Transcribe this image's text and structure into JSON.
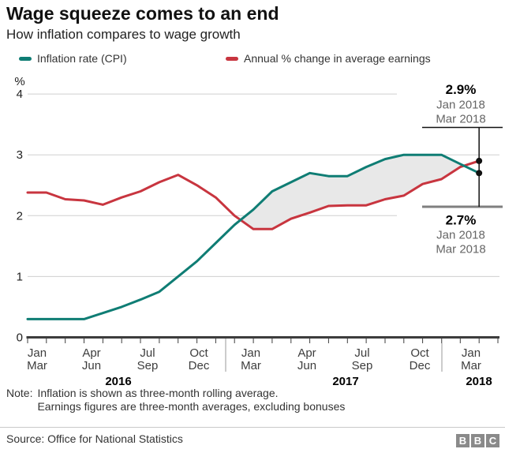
{
  "header": {
    "title": "Wage squeeze comes to an end",
    "subtitle": "How inflation compares to wage growth"
  },
  "legend": {
    "items": [
      {
        "label": "Inflation rate (CPI)",
        "color": "#0f7d74"
      },
      {
        "label": "Annual % change in average earnings",
        "color": "#c8353f"
      }
    ]
  },
  "chart_data": {
    "type": "line",
    "title": "Wage squeeze comes to an end",
    "subtitle": "How inflation compares to wage growth",
    "unit": "%",
    "ylim": [
      0,
      4
    ],
    "yticks": [
      4,
      3,
      2,
      1,
      0
    ],
    "grid": "horizontal",
    "legend_position": "top",
    "band_fill": "#e8e8e8",
    "x_periods": [
      "Jan-Mar 2016",
      "Feb-Apr 2016",
      "Mar-May 2016",
      "Apr-Jun 2016",
      "May-Jul 2016",
      "Jun-Aug 2016",
      "Jul-Sep 2016",
      "Aug-Oct 2016",
      "Sep-Nov 2016",
      "Oct-Dec 2016",
      "Nov 2016-Jan 2017",
      "Dec 2016-Feb 2017",
      "Jan-Mar 2017",
      "Feb-Apr 2017",
      "Mar-May 2017",
      "Apr-Jun 2017",
      "May-Jul 2017",
      "Jun-Aug 2017",
      "Jul-Sep 2017",
      "Aug-Oct 2017",
      "Sep-Nov 2017",
      "Oct-Dec 2017",
      "Nov 2017-Jan 2018",
      "Dec 2017-Feb 2018",
      "Jan-Mar 2018"
    ],
    "series": [
      {
        "name": "Inflation rate (CPI)",
        "color": "#0f7d74",
        "values": [
          0.3,
          0.3,
          0.3,
          0.3,
          0.4,
          0.5,
          0.62,
          0.75,
          1.0,
          1.25,
          1.55,
          1.85,
          2.1,
          2.4,
          2.55,
          2.7,
          2.65,
          2.65,
          2.8,
          2.93,
          3.0,
          3.0,
          3.0,
          2.85,
          2.7
        ]
      },
      {
        "name": "Annual % change in average earnings",
        "color": "#c8353f",
        "values": [
          2.38,
          2.38,
          2.27,
          2.25,
          2.18,
          2.3,
          2.4,
          2.55,
          2.67,
          2.5,
          2.3,
          2.0,
          1.78,
          1.78,
          1.95,
          2.05,
          2.16,
          2.17,
          2.17,
          2.27,
          2.33,
          2.52,
          2.6,
          2.8,
          2.9
        ]
      }
    ],
    "x_axis": {
      "quarters": [
        {
          "l1": "Jan",
          "l2": "Mar"
        },
        {
          "l1": "Apr",
          "l2": "Jun"
        },
        {
          "l1": "Jul",
          "l2": "Sep"
        },
        {
          "l1": "Oct",
          "l2": "Dec"
        },
        {
          "l1": "Jan",
          "l2": "Mar"
        },
        {
          "l1": "Apr",
          "l2": "Jun"
        },
        {
          "l1": "Jul",
          "l2": "Sep"
        },
        {
          "l1": "Oct",
          "l2": "Dec"
        },
        {
          "l1": "Jan",
          "l2": "Mar"
        }
      ],
      "years": [
        "2016",
        "2017",
        "2018"
      ]
    },
    "annotations": [
      {
        "series": "Annual % change in average earnings",
        "value": 2.9,
        "value_label": "2.9%",
        "period_lines": [
          "Jan 2018",
          "Mar 2018"
        ]
      },
      {
        "series": "Inflation rate (CPI)",
        "value": 2.7,
        "value_label": "2.7%",
        "period_lines": [
          "Jan 2018",
          "Mar 2018"
        ]
      }
    ]
  },
  "footer": {
    "note_label": "Note:",
    "note_lines": [
      "Inflation is shown as three-month rolling average.",
      "Earnings figures are three-month averages, excluding bonuses"
    ],
    "source": "Source: Office for National Statistics",
    "logo_letters": [
      "B",
      "B",
      "C"
    ]
  }
}
